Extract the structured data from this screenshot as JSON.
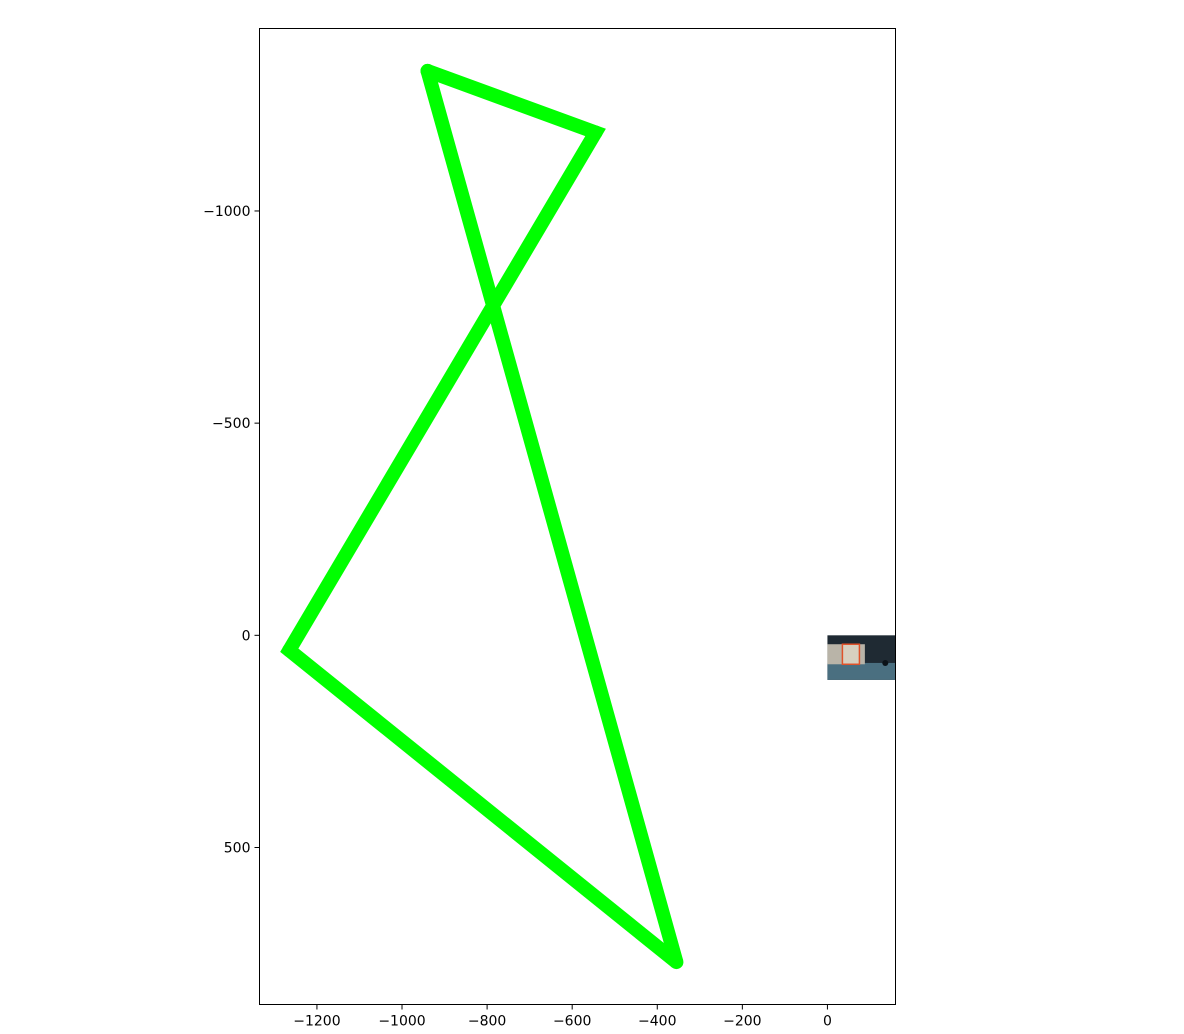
{
  "chart_data": {
    "type": "line",
    "title": "",
    "xlabel": "",
    "ylabel": "",
    "xlim": [
      -1335,
      160
    ],
    "ylim": [
      870,
      -1430
    ],
    "y_inverted": true,
    "grid": false,
    "legend": "none",
    "x_ticks": [
      -1200,
      -1000,
      -800,
      -600,
      -400,
      -200,
      0
    ],
    "x_tick_labels": [
      "−1200",
      "−1000",
      "−800",
      "−600",
      "−400",
      "−200",
      "0"
    ],
    "y_ticks": [
      -1000,
      -500,
      0,
      500
    ],
    "y_tick_labels": [
      "−1000",
      "−500",
      "0",
      "500"
    ],
    "series": [
      {
        "color": "#00ff00",
        "points": [
          [
            -940,
            -1330
          ],
          [
            -545,
            -1185
          ],
          [
            -1265,
            35
          ],
          [
            -355,
            770
          ],
          [
            -940,
            -1330
          ]
        ]
      }
    ],
    "inset_image": {
      "description_icon": "photo-thumbnail",
      "x_range": [
        0,
        160
      ],
      "y_range": [
        0,
        105
      ]
    },
    "colors": {
      "line": "#00ff00",
      "axes": "#000000",
      "background": "#ffffff"
    }
  }
}
